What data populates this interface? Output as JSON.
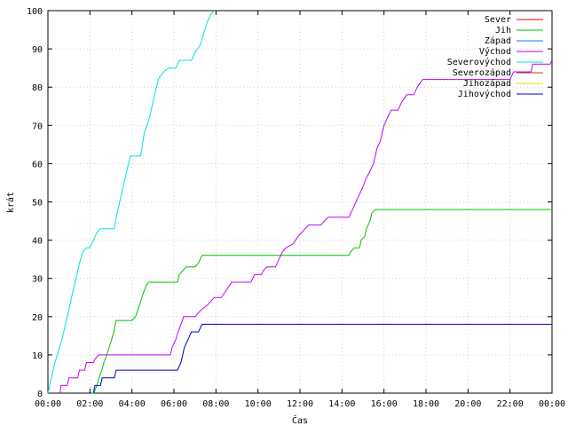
{
  "chart_data": {
    "type": "line",
    "xlabel": "Čas",
    "ylabel": "krát",
    "x_ticks": [
      "00:00",
      "02:00",
      "04:00",
      "06:00",
      "08:00",
      "10:00",
      "12:00",
      "14:00",
      "16:00",
      "18:00",
      "20:00",
      "22:00",
      "00:00"
    ],
    "xlim": [
      "00:00",
      "24:00"
    ],
    "ylim": [
      0,
      100
    ],
    "y_ticks": [
      0,
      10,
      20,
      30,
      40,
      50,
      60,
      70,
      80,
      90,
      100
    ],
    "grid": true,
    "legend_position": "top-right",
    "series": [
      {
        "name": "Sever",
        "color": "#ff0000",
        "points": []
      },
      {
        "name": "Jih",
        "color": "#00c000",
        "points": [
          [
            "02:05",
            0
          ],
          [
            "02:12",
            0
          ],
          [
            "02:15",
            1
          ],
          [
            "02:20",
            2
          ],
          [
            "02:26",
            4
          ],
          [
            "02:34",
            6
          ],
          [
            "02:40",
            8
          ],
          [
            "02:48",
            10
          ],
          [
            "02:55",
            12
          ],
          [
            "03:02",
            14
          ],
          [
            "03:08",
            16
          ],
          [
            "03:15",
            19
          ],
          [
            "03:30",
            19
          ],
          [
            "03:45",
            19
          ],
          [
            "04:00",
            19
          ],
          [
            "04:10",
            20
          ],
          [
            "04:18",
            22
          ],
          [
            "04:25",
            24
          ],
          [
            "04:32",
            26
          ],
          [
            "04:40",
            28
          ],
          [
            "04:48",
            29
          ],
          [
            "05:30",
            29
          ],
          [
            "06:00",
            29
          ],
          [
            "06:10",
            29
          ],
          [
            "06:15",
            31
          ],
          [
            "06:25",
            32
          ],
          [
            "06:35",
            33
          ],
          [
            "07:00",
            33
          ],
          [
            "07:10",
            34
          ],
          [
            "07:20",
            36
          ],
          [
            "10:00",
            36
          ],
          [
            "12:00",
            36
          ],
          [
            "14:20",
            36
          ],
          [
            "14:25",
            37
          ],
          [
            "14:35",
            38
          ],
          [
            "14:50",
            38
          ],
          [
            "14:55",
            40
          ],
          [
            "15:05",
            41
          ],
          [
            "15:10",
            43
          ],
          [
            "15:20",
            45
          ],
          [
            "15:25",
            47
          ],
          [
            "15:35",
            48
          ],
          [
            "24:00",
            48
          ]
        ]
      },
      {
        "name": "Západ",
        "color": "#0080ff",
        "points": []
      },
      {
        "name": "Východ",
        "color": "#c000ff",
        "points": [
          [
            "00:35",
            0
          ],
          [
            "00:37",
            2
          ],
          [
            "00:55",
            2
          ],
          [
            "01:00",
            4
          ],
          [
            "01:25",
            4
          ],
          [
            "01:30",
            6
          ],
          [
            "01:45",
            6
          ],
          [
            "01:50",
            8
          ],
          [
            "02:10",
            8
          ],
          [
            "02:15",
            9
          ],
          [
            "02:25",
            10
          ],
          [
            "05:00",
            10
          ],
          [
            "05:50",
            10
          ],
          [
            "05:55",
            12
          ],
          [
            "06:05",
            14
          ],
          [
            "06:12",
            16
          ],
          [
            "06:20",
            18
          ],
          [
            "06:28",
            20
          ],
          [
            "07:00",
            20
          ],
          [
            "07:10",
            21
          ],
          [
            "07:20",
            22
          ],
          [
            "07:35",
            23
          ],
          [
            "07:45",
            24
          ],
          [
            "07:55",
            25
          ],
          [
            "08:15",
            25
          ],
          [
            "08:30",
            27
          ],
          [
            "08:45",
            29
          ],
          [
            "09:10",
            29
          ],
          [
            "09:40",
            29
          ],
          [
            "09:50",
            31
          ],
          [
            "10:10",
            31
          ],
          [
            "10:15",
            32
          ],
          [
            "10:25",
            33
          ],
          [
            "10:50",
            33
          ],
          [
            "11:00",
            35
          ],
          [
            "11:10",
            37
          ],
          [
            "11:20",
            38
          ],
          [
            "11:40",
            39
          ],
          [
            "11:55",
            41
          ],
          [
            "12:05",
            42
          ],
          [
            "12:15",
            43
          ],
          [
            "12:25",
            44
          ],
          [
            "13:00",
            44
          ],
          [
            "13:10",
            45
          ],
          [
            "13:20",
            46
          ],
          [
            "14:20",
            46
          ],
          [
            "14:30",
            48
          ],
          [
            "14:40",
            50
          ],
          [
            "14:50",
            52
          ],
          [
            "15:00",
            54
          ],
          [
            "15:08",
            56
          ],
          [
            "15:20",
            58
          ],
          [
            "15:30",
            60
          ],
          [
            "15:40",
            64
          ],
          [
            "15:50",
            66
          ],
          [
            "16:00",
            70
          ],
          [
            "16:10",
            72
          ],
          [
            "16:20",
            74
          ],
          [
            "16:40",
            74
          ],
          [
            "16:50",
            76
          ],
          [
            "17:05",
            78
          ],
          [
            "17:25",
            78
          ],
          [
            "17:35",
            80
          ],
          [
            "17:50",
            82
          ],
          [
            "21:00",
            82
          ],
          [
            "22:00",
            82
          ],
          [
            "22:10",
            84
          ],
          [
            "23:00",
            84
          ],
          [
            "23:05",
            86
          ],
          [
            "23:55",
            86
          ],
          [
            "24:00",
            87
          ]
        ]
      },
      {
        "name": "Severovýchod",
        "color": "#00e0e0",
        "points": [
          [
            "00:00",
            0
          ],
          [
            "00:10",
            4
          ],
          [
            "00:20",
            8
          ],
          [
            "00:30",
            11
          ],
          [
            "00:40",
            14
          ],
          [
            "00:50",
            18
          ],
          [
            "01:00",
            22
          ],
          [
            "01:10",
            26
          ],
          [
            "01:20",
            30
          ],
          [
            "01:30",
            34
          ],
          [
            "01:40",
            37
          ],
          [
            "01:50",
            38
          ],
          [
            "02:00",
            38
          ],
          [
            "02:10",
            40
          ],
          [
            "02:20",
            42
          ],
          [
            "02:30",
            43
          ],
          [
            "03:10",
            43
          ],
          [
            "03:15",
            46
          ],
          [
            "03:25",
            50
          ],
          [
            "03:35",
            54
          ],
          [
            "03:45",
            58
          ],
          [
            "03:55",
            62
          ],
          [
            "04:25",
            62
          ],
          [
            "04:35",
            68
          ],
          [
            "04:50",
            72
          ],
          [
            "05:05",
            78
          ],
          [
            "05:15",
            82
          ],
          [
            "05:30",
            84
          ],
          [
            "05:45",
            85
          ],
          [
            "06:05",
            85
          ],
          [
            "06:15",
            87
          ],
          [
            "06:50",
            87
          ],
          [
            "07:00",
            89
          ],
          [
            "07:15",
            91
          ],
          [
            "07:25",
            94
          ],
          [
            "07:35",
            97
          ],
          [
            "07:45",
            99
          ],
          [
            "07:55",
            100
          ]
        ]
      },
      {
        "name": "Severozápad",
        "color": "#c04000",
        "points": []
      },
      {
        "name": "Jihozápad",
        "color": "#e0e000",
        "points": []
      },
      {
        "name": "Jihovýchod",
        "color": "#0000c0",
        "points": [
          [
            "02:10",
            0
          ],
          [
            "02:14",
            2
          ],
          [
            "02:30",
            2
          ],
          [
            "02:35",
            4
          ],
          [
            "03:10",
            4
          ],
          [
            "03:15",
            6
          ],
          [
            "06:10",
            6
          ],
          [
            "06:20",
            8
          ],
          [
            "06:30",
            12
          ],
          [
            "06:40",
            14
          ],
          [
            "06:50",
            16
          ],
          [
            "07:10",
            16
          ],
          [
            "07:20",
            18
          ],
          [
            "24:00",
            18
          ]
        ]
      }
    ]
  }
}
